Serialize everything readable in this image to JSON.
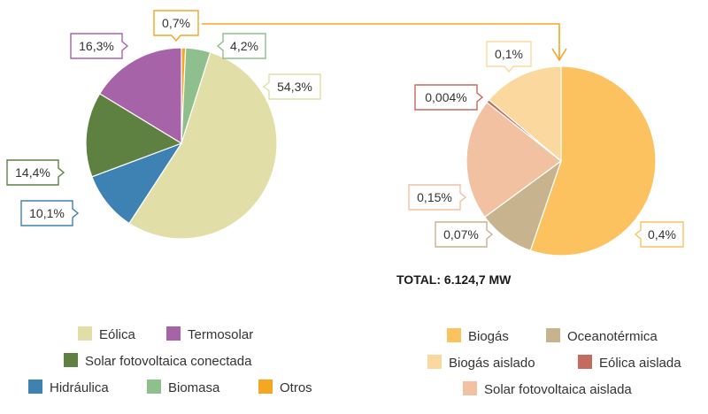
{
  "chart_data": [
    {
      "type": "pie",
      "title": "",
      "categories": [
        "Eólica",
        "Solar fotovoltaica conectada",
        "Hidráulica",
        "Termosolar",
        "Biomasa",
        "Otros"
      ],
      "values": [
        54.3,
        14.4,
        10.1,
        16.3,
        4.2,
        0.7
      ],
      "labels": [
        "54,3%",
        "14,4%",
        "10,1%",
        "16,3%",
        "4,2%",
        "0,7%"
      ],
      "colors": [
        "#e1dfa7",
        "#5e8142",
        "#3e82b3",
        "#a763a8",
        "#8fbf8c",
        "#f5a623"
      ],
      "label_border_colors": [
        "#e1dfa7",
        "#5e8142",
        "#3e82b3",
        "#a763a8",
        "#8fbf8c",
        "#f5a623"
      ]
    },
    {
      "type": "pie",
      "title": "",
      "categories": [
        "Biogás",
        "Oceanotérmica",
        "Solar fotovoltaica aislada",
        "Eólica aislada",
        "Biogás aislado"
      ],
      "values": [
        0.4,
        0.07,
        0.15,
        0.004,
        0.1
      ],
      "labels": [
        "0,4%",
        "0,07%",
        "0,15%",
        "0,004%",
        "0,1%"
      ],
      "colors": [
        "#fcc25f",
        "#c7b48e",
        "#f2c1a2",
        "#c46a5e",
        "#fbd99e"
      ],
      "label_border_colors": [
        "#fcc25f",
        "#c7b48e",
        "#f2c1a2",
        "#c46a5e",
        "#fbd99e"
      ],
      "total_label": "TOTAL: 6.124,7 MW"
    }
  ],
  "legend_left": [
    "Eólica",
    "Termosolar",
    "Solar fotovoltaica conectada",
    "Hidráulica",
    "Biomasa",
    "Otros"
  ],
  "legend_right": [
    "Biogás",
    "Oceanotérmica",
    "Biogás aislado",
    "Eólica aislada",
    "Solar fotovoltaica aislada"
  ],
  "connector_color": "#f5a623"
}
